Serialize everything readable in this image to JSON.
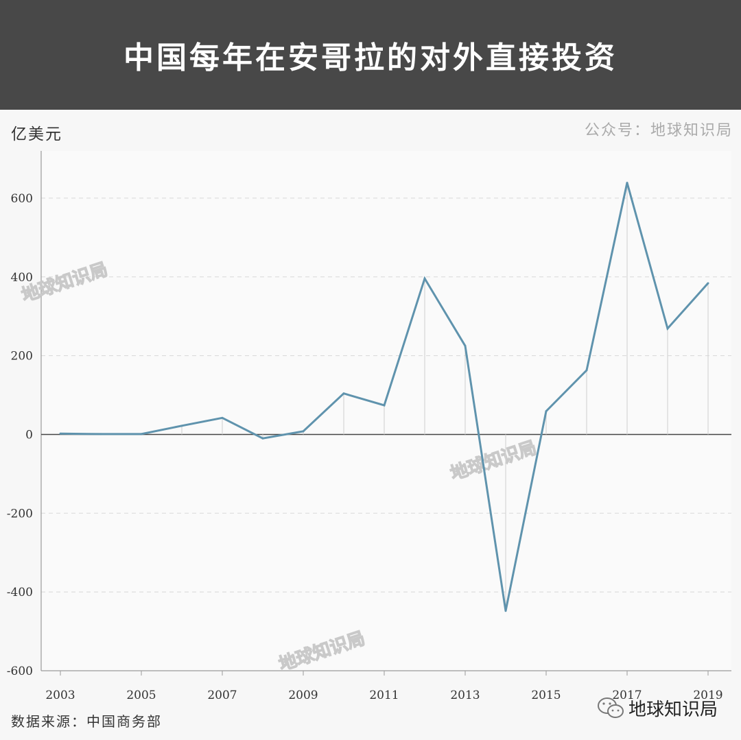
{
  "header": {
    "title": "中国每年在安哥拉的对外直接投资"
  },
  "unit_label": "亿美元",
  "credit": "公众号：地球知识局",
  "source": "数据来源：中国商务部",
  "brand": {
    "label": "地球知识局",
    "icon": "wechat-icon"
  },
  "watermark_text": "地球知识局",
  "colors": {
    "header_bg": "#484848",
    "line": "#5f93ad",
    "grid": "#d8d8d8",
    "axis": "#444444",
    "drop": "#d5d5d5"
  },
  "chart_data": {
    "type": "line",
    "title": "中国每年在安哥拉的对外直接投资",
    "ylabel": "亿美元",
    "xlabel": "",
    "x": [
      2003,
      2004,
      2005,
      2006,
      2007,
      2008,
      2009,
      2010,
      2011,
      2012,
      2013,
      2014,
      2015,
      2016,
      2017,
      2018,
      2019
    ],
    "series": [
      {
        "values": [
          2,
          1,
          1,
          22,
          42,
          -10,
          8,
          104,
          74,
          396,
          225,
          -448,
          59,
          163,
          639,
          269,
          384
        ]
      }
    ],
    "x_ticks": [
      "2003",
      "2005",
      "2007",
      "2009",
      "2011",
      "2013",
      "2015",
      "2017",
      "2019"
    ],
    "y_ticks": [
      "-600",
      "-400",
      "-200",
      "0",
      "200",
      "400",
      "600"
    ],
    "ylim": [
      -600,
      720
    ],
    "xlim": [
      2003,
      2019
    ],
    "grid": "horizontal dashed",
    "legend": "none"
  }
}
